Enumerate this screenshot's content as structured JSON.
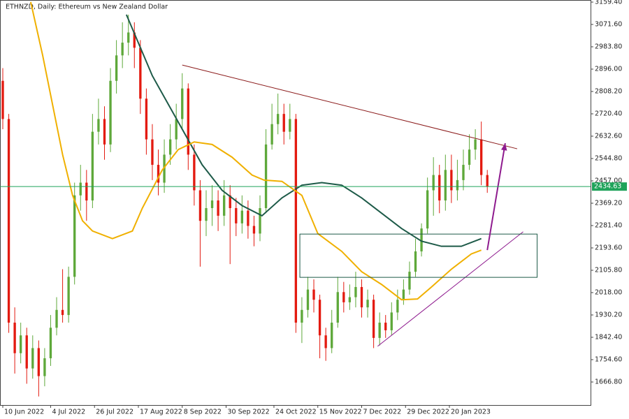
{
  "chart_data": {
    "type": "candlestick",
    "title": "ETHNZD, Daily:  Ethereum vs New Zealand Dollar",
    "up_color": "#5ea83a",
    "down_color": "#e31a10",
    "xlim": [
      -1.4,
      294.8
    ],
    "ylim": [
      1576.3,
      3167.6
    ],
    "xticks": [
      {
        "value": 0,
        "label": "10 Jun 2022"
      },
      {
        "value": 24,
        "label": "4 Jul 2022"
      },
      {
        "value": 46,
        "label": "26 Jul 2022"
      },
      {
        "value": 68,
        "label": "17 Aug 2022"
      },
      {
        "value": 90,
        "label": "8 Sep 2022"
      },
      {
        "value": 112,
        "label": "30 Sep 2022"
      },
      {
        "value": 136,
        "label": "24 Oct 2022"
      },
      {
        "value": 158,
        "label": "15 Nov 2022"
      },
      {
        "value": 180,
        "label": "7 Dec 2022"
      },
      {
        "value": 202,
        "label": "29 Dec 2022"
      },
      {
        "value": 224,
        "label": "20 Jan 2023"
      }
    ],
    "yticks": [
      {
        "value": 3159.4,
        "label": "3159.40"
      },
      {
        "value": 3071.6,
        "label": "3071.60"
      },
      {
        "value": 2983.8,
        "label": "2983.80"
      },
      {
        "value": 2896,
        "label": "2896.00"
      },
      {
        "value": 2808.2,
        "label": "2808.20"
      },
      {
        "value": 2720.4,
        "label": "2720.40"
      },
      {
        "value": 2632.6,
        "label": "2632.60"
      },
      {
        "value": 2544.8,
        "label": "2544.80"
      },
      {
        "value": 2457,
        "label": "2457.00"
      },
      {
        "value": 2369.2,
        "label": "2369.20"
      },
      {
        "value": 2281.4,
        "label": "2281.40"
      },
      {
        "value": 2193.6,
        "label": "2193.60"
      },
      {
        "value": 2105.8,
        "label": "2105.80"
      },
      {
        "value": 2018,
        "label": "2018.00"
      },
      {
        "value": 1930.2,
        "label": "1930.20"
      },
      {
        "value": 1842.4,
        "label": "1842.40"
      },
      {
        "value": 1754.6,
        "label": "1754.60"
      },
      {
        "value": 1666.8,
        "label": "1666.80"
      }
    ],
    "last_price": {
      "value": 2434.63,
      "label": "2434.63",
      "color": "#1fa35a"
    },
    "x": [
      0,
      3,
      6,
      9,
      12,
      15,
      18,
      21,
      24,
      27,
      30,
      33,
      36,
      39,
      42,
      45,
      48,
      51,
      54,
      57,
      60,
      63,
      66,
      69,
      72,
      75,
      78,
      81,
      84,
      87,
      90,
      93,
      96,
      99,
      102,
      105,
      108,
      111,
      114,
      117,
      120,
      123,
      126,
      129,
      132,
      135,
      138,
      141,
      144,
      147,
      150,
      153,
      156,
      159,
      162,
      165,
      168,
      171,
      174,
      177,
      180,
      183,
      186,
      189,
      192,
      195,
      198,
      201,
      204,
      207,
      210,
      213,
      216,
      219,
      222,
      225,
      228,
      231,
      234,
      237,
      240,
      243
    ],
    "open": [
      2850,
      2700,
      1900,
      1780,
      1850,
      1720,
      1800,
      1690,
      1760,
      1880,
      1950,
      1930,
      2080,
      2400,
      2450,
      2380,
      2650,
      2700,
      2600,
      2850,
      2950,
      3000,
      3040,
      2980,
      2780,
      2620,
      2520,
      2450,
      2560,
      2620,
      2700,
      2820,
      2560,
      2420,
      2300,
      2350,
      2380,
      2320,
      2400,
      2350,
      2290,
      2340,
      2280,
      2250,
      2350,
      2600,
      2680,
      2720,
      2650,
      2700,
      1900,
      1950,
      2030,
      1990,
      1850,
      1800,
      1900,
      2020,
      1980,
      2000,
      2040,
      1960,
      1990,
      1840,
      1900,
      1870,
      1940,
      1990,
      2030,
      2100,
      2180,
      2270,
      2420,
      2480,
      2380,
      2500,
      2420,
      2460,
      2520,
      2580,
      2620,
      2480
    ],
    "high": [
      2900,
      2720,
      1960,
      1900,
      1880,
      1850,
      1830,
      1800,
      1930,
      2000,
      2110,
      2120,
      2450,
      2520,
      2500,
      2720,
      2780,
      2750,
      2900,
      3010,
      3080,
      3110,
      3080,
      3010,
      2820,
      2680,
      2580,
      2620,
      2680,
      2760,
      2880,
      2840,
      2600,
      2460,
      2420,
      2440,
      2420,
      2460,
      2440,
      2390,
      2400,
      2380,
      2320,
      2400,
      2660,
      2760,
      2800,
      2760,
      2760,
      2720,
      2000,
      2080,
      2070,
      2010,
      1880,
      1950,
      2080,
      2060,
      2050,
      2100,
      2070,
      2030,
      2010,
      1940,
      1930,
      1980,
      2030,
      2070,
      2140,
      2230,
      2290,
      2470,
      2550,
      2520,
      2560,
      2560,
      2540,
      2580,
      2640,
      2660,
      2690,
      2500
    ],
    "low": [
      2660,
      1860,
      1700,
      1740,
      1660,
      1680,
      1610,
      1650,
      1730,
      1850,
      1900,
      1900,
      2050,
      2340,
      2300,
      2350,
      2600,
      2540,
      2570,
      2800,
      2900,
      2950,
      2900,
      2720,
      2560,
      2460,
      2400,
      2410,
      2520,
      2580,
      2660,
      2500,
      2360,
      2120,
      2240,
      2280,
      2260,
      2280,
      2130,
      2240,
      2250,
      2230,
      2200,
      2220,
      2330,
      2580,
      2640,
      2600,
      2620,
      1860,
      1820,
      1920,
      1940,
      1760,
      1750,
      1780,
      1880,
      1940,
      1950,
      1960,
      1920,
      1920,
      1800,
      1810,
      1840,
      1850,
      1910,
      1970,
      2010,
      2080,
      2160,
      2250,
      2320,
      2330,
      2340,
      2370,
      2380,
      2420,
      2500,
      2540,
      2440,
      2410
    ],
    "close": [
      2700,
      1900,
      1780,
      1850,
      1720,
      1800,
      1690,
      1760,
      1880,
      1950,
      1930,
      2080,
      2400,
      2450,
      2380,
      2650,
      2700,
      2600,
      2850,
      2950,
      3000,
      3040,
      2980,
      2780,
      2620,
      2520,
      2450,
      2560,
      2620,
      2700,
      2820,
      2560,
      2420,
      2300,
      2350,
      2380,
      2320,
      2400,
      2350,
      2290,
      2340,
      2280,
      2250,
      2350,
      2600,
      2680,
      2720,
      2650,
      2700,
      1900,
      1950,
      2030,
      1990,
      1850,
      1800,
      1900,
      2020,
      1980,
      2000,
      2040,
      1960,
      1990,
      1840,
      1900,
      1870,
      1940,
      1990,
      2030,
      2100,
      2180,
      2270,
      2420,
      2480,
      2380,
      2500,
      2420,
      2460,
      2520,
      2580,
      2620,
      2480,
      2434.63
    ],
    "indicators": [
      {
        "color": "#1d5a48",
        "x": [
          62,
          75,
          90,
          100,
          110,
          120,
          130,
          140,
          150,
          160,
          170,
          180,
          190,
          200,
          210,
          220,
          230,
          240
        ],
        "values": [
          3110,
          2870,
          2660,
          2520,
          2420,
          2360,
          2320,
          2390,
          2440,
          2450,
          2440,
          2390,
          2330,
          2270,
          2220,
          2200,
          2200,
          2230
        ]
      },
      {
        "color": "#f0b000",
        "x": [
          14,
          20,
          30,
          35,
          40,
          45,
          55,
          65,
          70,
          80,
          88,
          96,
          105,
          115,
          125,
          131,
          140,
          150,
          158,
          170,
          180,
          190,
          200,
          208,
          215,
          225,
          235,
          240
        ],
        "values": [
          3160,
          2950,
          2560,
          2400,
          2300,
          2260,
          2230,
          2260,
          2350,
          2500,
          2580,
          2610,
          2600,
          2550,
          2480,
          2460,
          2455,
          2400,
          2250,
          2180,
          2100,
          2050,
          1990,
          1993,
          2040,
          2110,
          2170,
          2185
        ]
      }
    ],
    "drawings": [
      {
        "shape": "line",
        "color": "#8b1a1a",
        "x": [
          90,
          258
        ],
        "y": [
          2912,
          2583
        ]
      },
      {
        "shape": "line",
        "color": "#8e1a8e",
        "x": [
          188,
          261
        ],
        "y": [
          1807,
          2257
        ]
      },
      {
        "shape": "rect",
        "color": "#1d5a48",
        "x": [
          149,
          268
        ],
        "y": [
          2248,
          2078
        ]
      },
      {
        "shape": "arrow",
        "color": "#8e1a8e",
        "x": [
          243,
          252
        ],
        "y": [
          2185,
          2605
        ]
      }
    ]
  }
}
